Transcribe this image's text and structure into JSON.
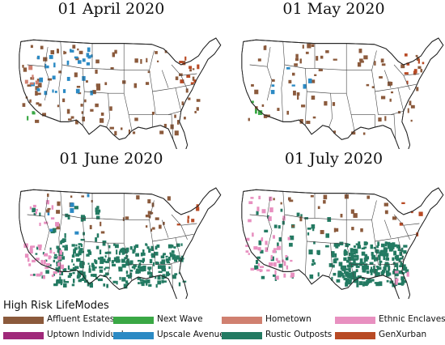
{
  "maps": [
    {
      "title": "01 April 2020"
    },
    {
      "title": "01 May 2020"
    },
    {
      "title": "01 June 2020"
    },
    {
      "title": "01 July 2020"
    }
  ],
  "legend": {
    "title": "High Risk LifeModes",
    "items": [
      {
        "label": "Affluent Estates",
        "color": "#8b5a3c"
      },
      {
        "label": "Uptown Individuals",
        "color": "#a0297a"
      },
      {
        "label": "Next Wave",
        "color": "#3aa845"
      },
      {
        "label": "Upscale Avenues",
        "color": "#2b8ac4"
      },
      {
        "label": "Hometown",
        "color": "#d08070"
      },
      {
        "label": "Rustic Outposts",
        "color": "#237a62"
      },
      {
        "label": "Ethnic Enclaves",
        "color": "#e890c0"
      },
      {
        "label": "GenXurban",
        "color": "#b84a24"
      }
    ]
  }
}
